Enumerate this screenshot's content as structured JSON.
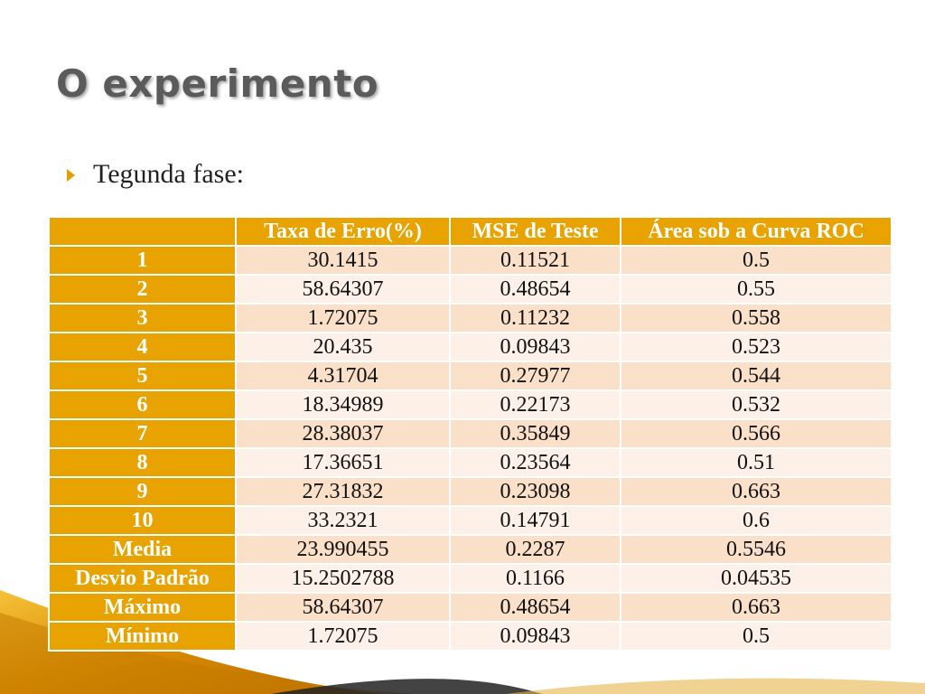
{
  "slide": {
    "title": "O experimento",
    "bullet": "Tegunda fase:"
  },
  "colors": {
    "accent": "#e9a300",
    "title": "#5b5b5b",
    "row_light": "#fdf0e8",
    "row_dark": "#fadfc9"
  },
  "icons": {
    "bullet": "triangle-right-icon"
  },
  "table": {
    "headers": [
      "",
      "Taxa de Erro(%)",
      "MSE de Teste",
      "Área sob a Curva ROC"
    ],
    "rows": [
      [
        "1",
        "30.1415",
        "0.11521",
        "0.5"
      ],
      [
        "2",
        "58.64307",
        "0.48654",
        "0.55"
      ],
      [
        "3",
        "1.72075",
        "0.11232",
        "0.558"
      ],
      [
        "4",
        "20.435",
        "0.09843",
        "0.523"
      ],
      [
        "5",
        "4.31704",
        "0.27977",
        "0.544"
      ],
      [
        "6",
        "18.34989",
        "0.22173",
        "0.532"
      ],
      [
        "7",
        "28.38037",
        "0.35849",
        "0.566"
      ],
      [
        "8",
        "17.36651",
        "0.23564",
        "0.51"
      ],
      [
        "9",
        "27.31832",
        "0.23098",
        "0.663"
      ],
      [
        "10",
        "33.2321",
        "0.14791",
        "0.6"
      ],
      [
        "Media",
        "23.990455",
        "0.2287",
        "0.5546"
      ],
      [
        "Desvio Padrão",
        "15.2502788",
        "0.1166",
        "0.04535"
      ],
      [
        "Máximo",
        "58.64307",
        "0.48654",
        "0.663"
      ],
      [
        "Mínimo",
        "1.72075",
        "0.09843",
        "0.5"
      ]
    ]
  }
}
